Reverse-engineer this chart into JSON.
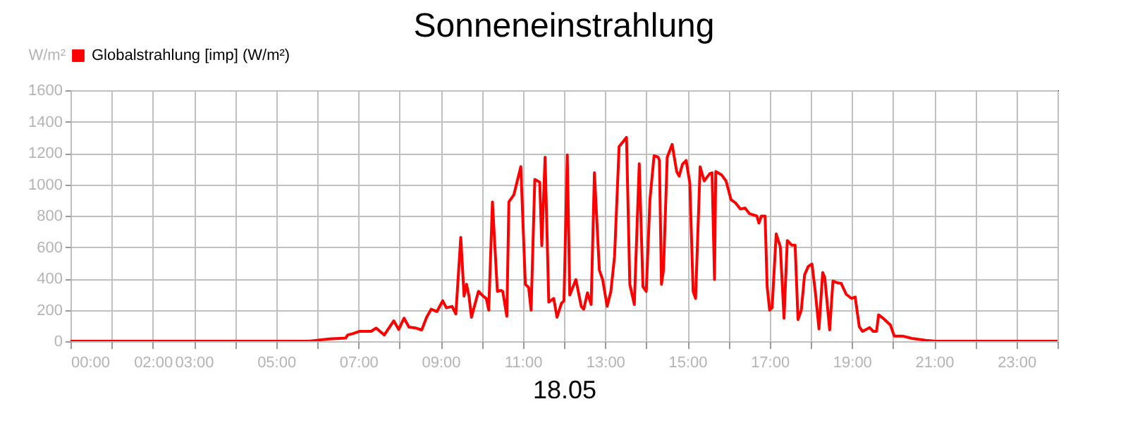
{
  "chart_data": {
    "type": "line",
    "title": "Sonneneinstrahlung",
    "xlabel": "18.05",
    "ylabel": "W/m²",
    "x": [
      0,
      5.8,
      6.29,
      6.69,
      6.74,
      6.86,
      7.03,
      7.31,
      7.43,
      7.63,
      7.86,
      7.98,
      8.11,
      8.23,
      8.4,
      8.54,
      8.66,
      8.77,
      8.91,
      9.05,
      9.14,
      9.28,
      9.37,
      9.49,
      9.57,
      9.63,
      9.69,
      9.75,
      9.92,
      10.03,
      10.11,
      10.17,
      10.26,
      10.38,
      10.46,
      10.51,
      10.61,
      10.66,
      10.78,
      10.95,
      11.06,
      11.14,
      11.2,
      11.29,
      11.41,
      11.46,
      11.54,
      11.63,
      11.75,
      11.83,
      11.94,
      12.0,
      12.08,
      12.14,
      12.29,
      12.42,
      12.48,
      12.57,
      12.66,
      12.74,
      12.86,
      12.94,
      13.05,
      13.14,
      13.23,
      13.34,
      13.43,
      13.52,
      13.6,
      13.71,
      13.83,
      13.92,
      14.0,
      14.09,
      14.19,
      14.29,
      14.32,
      14.37,
      14.42,
      14.51,
      14.63,
      14.74,
      14.8,
      14.88,
      14.97,
      15.06,
      15.14,
      15.2,
      15.31,
      15.41,
      15.54,
      15.6,
      15.66,
      15.69,
      15.83,
      15.94,
      16.06,
      16.17,
      16.29,
      16.4,
      16.51,
      16.69,
      16.74,
      16.8,
      16.89,
      16.94,
      17.0,
      17.06,
      17.16,
      17.26,
      17.35,
      17.43,
      17.54,
      17.62,
      17.69,
      17.77,
      17.85,
      17.94,
      18.03,
      18.11,
      18.2,
      18.29,
      18.34,
      18.46,
      18.54,
      18.65,
      18.74,
      18.86,
      18.99,
      19.08,
      19.18,
      19.26,
      19.43,
      19.52,
      19.6,
      19.65,
      19.77,
      19.94,
      20.03,
      20.23,
      20.46,
      20.8,
      21.03,
      24
    ],
    "series": [
      {
        "name": "Globalstrahlung [imp] (W/m²)",
        "color": "#ff0000",
        "values": [
          0,
          0,
          15,
          20,
          40,
          48,
          63,
          63,
          84,
          40,
          130,
          75,
          147,
          90,
          84,
          72,
          153,
          204,
          189,
          258,
          213,
          222,
          174,
          662,
          288,
          363,
          288,
          153,
          318,
          288,
          273,
          198,
          888,
          318,
          324,
          318,
          159,
          888,
          933,
          1113,
          363,
          342,
          198,
          1032,
          1014,
          609,
          1173,
          249,
          273,
          153,
          243,
          258,
          1188,
          294,
          393,
          222,
          204,
          309,
          234,
          1074,
          453,
          393,
          222,
          318,
          543,
          1240,
          1270,
          1300,
          363,
          234,
          1132,
          348,
          318,
          903,
          1182,
          1173,
          1152,
          363,
          453,
          1173,
          1255,
          1082,
          1052,
          1127,
          1152,
          1008,
          318,
          273,
          1112,
          1022,
          1067,
          1074,
          393,
          1082,
          1061,
          1022,
          903,
          882,
          843,
          849,
          813,
          798,
          753,
          798,
          798,
          348,
          198,
          213,
          684,
          603,
          147,
          642,
          612,
          612,
          138,
          198,
          423,
          477,
          492,
          318,
          78,
          438,
          408,
          72,
          384,
          372,
          369,
          300,
          273,
          282,
          93,
          63,
          87,
          63,
          63,
          168,
          144,
          102,
          33,
          33,
          18,
          6,
          0,
          0
        ]
      }
    ],
    "xlim": [
      0,
      24
    ],
    "xticks": [
      {
        "value": 0,
        "label": "00:00"
      },
      {
        "value": 1,
        "label": null
      },
      {
        "value": 2,
        "label": "02:00"
      },
      {
        "value": 3,
        "label": "03:00"
      },
      {
        "value": 4,
        "label": null
      },
      {
        "value": 5,
        "label": "05:00"
      },
      {
        "value": 6,
        "label": null
      },
      {
        "value": 7,
        "label": "07:00"
      },
      {
        "value": 8,
        "label": null
      },
      {
        "value": 9,
        "label": "09:00"
      },
      {
        "value": 10,
        "label": null
      },
      {
        "value": 11,
        "label": "11:00"
      },
      {
        "value": 12,
        "label": null
      },
      {
        "value": 13,
        "label": "13:00"
      },
      {
        "value": 14,
        "label": null
      },
      {
        "value": 15,
        "label": "15:00"
      },
      {
        "value": 16,
        "label": null
      },
      {
        "value": 17,
        "label": "17:00"
      },
      {
        "value": 18,
        "label": null
      },
      {
        "value": 19,
        "label": "19:00"
      },
      {
        "value": 20,
        "label": null
      },
      {
        "value": 21,
        "label": "21:00"
      },
      {
        "value": 22,
        "label": null
      },
      {
        "value": 23,
        "label": "23:00"
      },
      {
        "value": 24,
        "label": null
      }
    ],
    "ylim": [
      0,
      1600
    ],
    "yticks": [
      0,
      200,
      400,
      600,
      800,
      1000,
      1200,
      1400,
      1600
    ],
    "grid": true,
    "legend": "top left"
  }
}
